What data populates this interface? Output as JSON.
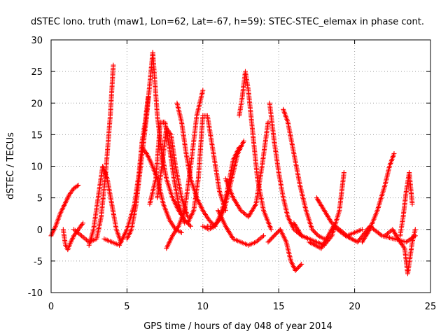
{
  "chart_data": {
    "type": "scatter",
    "title": "dSTEC Iono. truth (maw1, Lon=62, Lat=-67, h=59): STEC-STEC_elemax in phase cont.",
    "xlabel": "GPS time / hours of day 048 of year 2014",
    "ylabel": "dSTEC  / TECUs",
    "xlim": [
      0,
      25
    ],
    "ylim": [
      -10,
      30
    ],
    "xticks": [
      0,
      5,
      10,
      15,
      20,
      25
    ],
    "yticks": [
      -10,
      -5,
      0,
      5,
      10,
      15,
      20,
      25,
      30
    ],
    "grid": true,
    "marker": "+",
    "color": "#ff0000",
    "series": [
      {
        "x": [
          0.0,
          0.3,
          0.6,
          0.9,
          1.2,
          1.5,
          1.8
        ],
        "y": [
          -1.0,
          0.5,
          2.5,
          4.0,
          5.5,
          6.5,
          7.0
        ]
      },
      {
        "x": [
          0.8,
          0.95,
          1.1,
          1.3,
          1.5,
          1.8,
          2.1
        ],
        "y": [
          0.0,
          -2.5,
          -3.2,
          -2.0,
          -1.0,
          0.0,
          1.0
        ]
      },
      {
        "x": [
          1.5,
          2.0,
          2.5,
          3.0,
          3.3,
          3.6,
          3.9,
          4.1
        ],
        "y": [
          0.0,
          -1.0,
          -2.0,
          -1.5,
          2.0,
          9.0,
          18.0,
          26.0
        ]
      },
      {
        "x": [
          2.5,
          2.8,
          3.1,
          3.4,
          3.7,
          4.0,
          4.3,
          4.6
        ],
        "y": [
          -2.5,
          0.0,
          5.0,
          10.0,
          8.0,
          4.0,
          0.0,
          -2.0
        ]
      },
      {
        "x": [
          3.5,
          4.0,
          4.5,
          5.0,
          5.5,
          5.8,
          6.0,
          6.2,
          6.4
        ],
        "y": [
          -1.5,
          -2.0,
          -2.5,
          0.0,
          4.0,
          9.0,
          14.0,
          17.0,
          21.0
        ]
      },
      {
        "x": [
          5.0,
          5.3,
          5.6,
          5.9,
          6.1,
          6.3,
          6.5,
          6.7
        ],
        "y": [
          -1.5,
          0.0,
          4.0,
          10.0,
          14.0,
          18.0,
          23.0,
          28.0
        ]
      },
      {
        "x": [
          6.0,
          6.3,
          6.6,
          7.0,
          7.4,
          7.8,
          8.2,
          8.6
        ],
        "y": [
          13.0,
          12.0,
          10.5,
          8.0,
          4.0,
          1.5,
          0.0,
          -0.5
        ]
      },
      {
        "x": [
          6.7,
          7.0,
          7.3,
          7.6,
          8.0,
          8.4,
          8.8,
          9.2
        ],
        "y": [
          28.0,
          18.0,
          12.0,
          8.0,
          5.0,
          3.0,
          1.5,
          0.5
        ]
      },
      {
        "x": [
          6.5,
          6.9,
          7.2,
          7.5,
          7.8,
          8.1,
          8.4,
          8.8
        ],
        "y": [
          4.0,
          8.0,
          17.0,
          17.0,
          13.0,
          8.0,
          4.0,
          1.0
        ]
      },
      {
        "x": [
          7.0,
          7.3,
          7.6,
          7.9,
          8.2,
          8.6,
          9.0
        ],
        "y": [
          5.0,
          10.0,
          16.0,
          15.0,
          10.0,
          5.0,
          2.0
        ]
      },
      {
        "x": [
          7.6,
          8.0,
          8.4,
          8.8,
          9.2,
          9.6,
          10.0
        ],
        "y": [
          -3.0,
          -1.0,
          0.5,
          3.0,
          10.0,
          18.0,
          22.0
        ]
      },
      {
        "x": [
          8.3,
          8.6,
          8.9,
          9.2,
          9.6,
          10.0,
          10.4,
          10.8
        ],
        "y": [
          20.0,
          17.0,
          12.0,
          8.0,
          5.0,
          3.0,
          1.5,
          0.5
        ]
      },
      {
        "x": [
          9.0,
          9.4,
          9.7,
          10.0,
          10.3,
          10.7,
          11.1,
          11.5
        ],
        "y": [
          1.0,
          3.0,
          8.0,
          18.0,
          18.0,
          12.0,
          6.0,
          3.0
        ]
      },
      {
        "x": [
          10.0,
          10.4,
          10.8,
          11.2,
          11.6,
          12.0,
          12.4
        ],
        "y": [
          0.5,
          0.0,
          0.5,
          2.5,
          6.0,
          11.0,
          13.0
        ]
      },
      {
        "x": [
          10.3,
          10.7,
          11.1,
          11.5,
          11.9,
          12.3,
          12.7
        ],
        "y": [
          0.5,
          0.5,
          1.5,
          4.0,
          8.0,
          12.0,
          14.0
        ]
      },
      {
        "x": [
          11.0,
          11.5,
          12.0,
          12.5,
          13.0,
          13.5,
          14.0
        ],
        "y": [
          3.0,
          0.5,
          -1.5,
          -2.0,
          -2.5,
          -2.0,
          -1.0
        ]
      },
      {
        "x": [
          12.4,
          12.6,
          12.8,
          13.0,
          13.3,
          13.6,
          14.0,
          14.5
        ],
        "y": [
          18.0,
          21.0,
          25.0,
          22.0,
          15.0,
          8.0,
          3.0,
          0.0
        ]
      },
      {
        "x": [
          11.5,
          12.0,
          12.5,
          13.0,
          13.5,
          13.9,
          14.3
        ],
        "y": [
          8.0,
          5.0,
          3.0,
          2.0,
          4.0,
          10.0,
          17.0
        ]
      },
      {
        "x": [
          14.4,
          14.7,
          15.0,
          15.3,
          15.6,
          16.0,
          16.5,
          17.0
        ],
        "y": [
          20.0,
          14.0,
          9.0,
          5.0,
          2.0,
          0.0,
          -1.0,
          -1.5
        ]
      },
      {
        "x": [
          14.3,
          14.7,
          15.1,
          15.5,
          15.8,
          16.1,
          16.5
        ],
        "y": [
          -2.0,
          -1.0,
          0.0,
          -2.0,
          -5.0,
          -6.5,
          -5.5
        ]
      },
      {
        "x": [
          15.3,
          15.6,
          16.0,
          16.4,
          16.8,
          17.2,
          17.6,
          18.0
        ],
        "y": [
          19.0,
          17.0,
          12.0,
          7.0,
          3.0,
          0.0,
          -1.0,
          -1.5
        ]
      },
      {
        "x": [
          16.0,
          16.5,
          17.0,
          17.5,
          18.0,
          18.5,
          19.0,
          19.3
        ],
        "y": [
          1.0,
          -1.0,
          -1.5,
          -2.0,
          -2.5,
          -1.0,
          3.0,
          9.0
        ]
      },
      {
        "x": [
          17.5,
          18.0,
          18.5,
          19.0,
          19.5,
          20.0,
          20.5
        ],
        "y": [
          5.0,
          3.0,
          1.0,
          0.0,
          -1.0,
          -0.5,
          0.0
        ]
      },
      {
        "x": [
          17.0,
          17.8,
          18.6,
          19.4,
          20.2,
          21.0,
          21.8,
          22.6,
          23.4,
          24.0
        ],
        "y": [
          -2.0,
          -3.0,
          0.5,
          -1.0,
          -2.0,
          0.5,
          -1.0,
          -1.5,
          -2.0,
          -1.0
        ]
      },
      {
        "x": [
          20.5,
          21.0,
          21.5,
          22.0,
          22.3,
          22.6
        ],
        "y": [
          -2.0,
          0.0,
          3.0,
          7.0,
          10.0,
          12.0
        ]
      },
      {
        "x": [
          22.0,
          22.5,
          23.0,
          23.3,
          23.5,
          23.8,
          24.0
        ],
        "y": [
          -1.0,
          0.0,
          -2.0,
          -3.0,
          -7.0,
          -2.0,
          0.0
        ]
      },
      {
        "x": [
          23.0,
          23.2,
          23.4,
          23.6,
          23.8
        ],
        "y": [
          -1.0,
          2.0,
          6.0,
          9.0,
          4.0
        ]
      }
    ]
  }
}
